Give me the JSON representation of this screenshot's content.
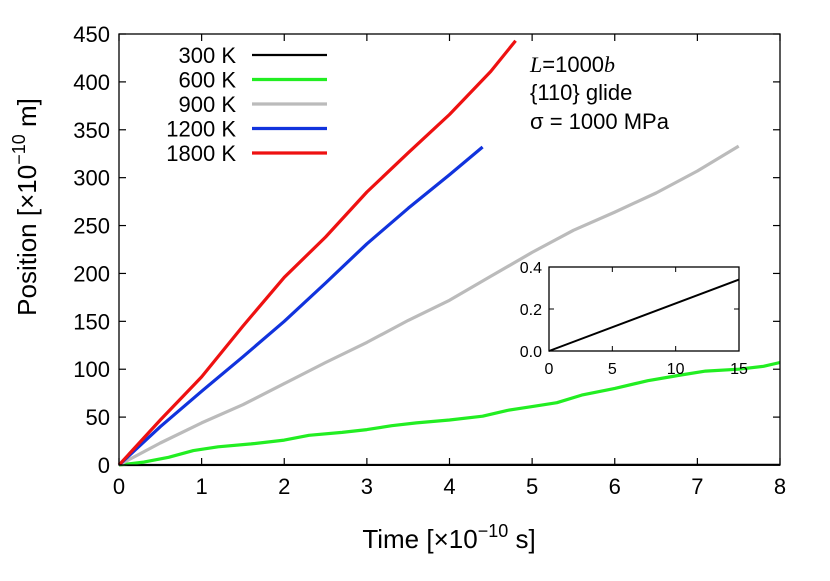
{
  "chart_data": {
    "type": "line",
    "xlabel": "Time [×10",
    "xlabel_exp": "−10",
    "xlabel_unit": " s]",
    "ylabel": "Position [×10",
    "ylabel_exp": "−10",
    "ylabel_unit": " m]",
    "xlim": [
      0,
      8
    ],
    "ylim": [
      0,
      450
    ],
    "x_ticks": [
      "0",
      "1",
      "2",
      "3",
      "4",
      "5",
      "6",
      "7",
      "8"
    ],
    "y_ticks": [
      "0",
      "50",
      "100",
      "150",
      "200",
      "250",
      "300",
      "350",
      "400",
      "450"
    ],
    "legend_position": "top-left",
    "annotations": {
      "line1_italic": "L",
      "line1_rest": "=1000",
      "line1_italic2": "b",
      "line2": "{110} glide",
      "line3": "σ = 1000 MPa"
    },
    "series": [
      {
        "name": "300 K",
        "color": "#000000",
        "x": [
          0,
          8
        ],
        "y": [
          0,
          0.2
        ]
      },
      {
        "name": "600 K",
        "color": "#22ee22",
        "x": [
          0,
          0.3,
          0.6,
          0.9,
          1.2,
          1.6,
          2.0,
          2.3,
          2.7,
          3.0,
          3.3,
          3.6,
          4.0,
          4.4,
          4.7,
          5.0,
          5.3,
          5.6,
          6.0,
          6.4,
          6.8,
          7.1,
          7.5,
          7.8,
          8.0
        ],
        "y": [
          0,
          3,
          8,
          15,
          19,
          22,
          26,
          31,
          34,
          37,
          41,
          44,
          47,
          51,
          57,
          61,
          65,
          73,
          80,
          88,
          94,
          98,
          100,
          103,
          107
        ]
      },
      {
        "name": "900 K",
        "color": "#bbbbbb",
        "x": [
          0,
          0.5,
          1.0,
          1.5,
          2.0,
          2.5,
          3.0,
          3.5,
          4.0,
          4.5,
          5.0,
          5.5,
          6.0,
          6.5,
          7.0,
          7.5
        ],
        "y": [
          0,
          23,
          44,
          63,
          85,
          107,
          128,
          151,
          172,
          197,
          222,
          245,
          264,
          284,
          307,
          333
        ]
      },
      {
        "name": "1200 K",
        "color": "#1133dd",
        "x": [
          0,
          0.5,
          1.0,
          1.5,
          2.0,
          2.5,
          3.0,
          3.5,
          4.0,
          4.4
        ],
        "y": [
          0,
          40,
          77,
          113,
          150,
          190,
          231,
          268,
          303,
          332
        ]
      },
      {
        "name": "1800 K",
        "color": "#ee1111",
        "x": [
          0,
          0.5,
          1.0,
          1.5,
          2.0,
          2.5,
          3.0,
          3.5,
          4.0,
          4.5,
          4.8
        ],
        "y": [
          0,
          47,
          92,
          145,
          196,
          238,
          285,
          326,
          366,
          411,
          443
        ]
      }
    ],
    "inset": {
      "type": "line",
      "xlim": [
        0,
        15
      ],
      "ylim": [
        0,
        0.4
      ],
      "x_ticks": [
        "0",
        "5",
        "10",
        "15"
      ],
      "y_ticks": [
        "0.0",
        "0.2",
        "0.4"
      ],
      "series": [
        {
          "name": "300 K",
          "color": "#000000",
          "x": [
            0,
            15
          ],
          "y": [
            0,
            0.34
          ]
        }
      ]
    }
  }
}
